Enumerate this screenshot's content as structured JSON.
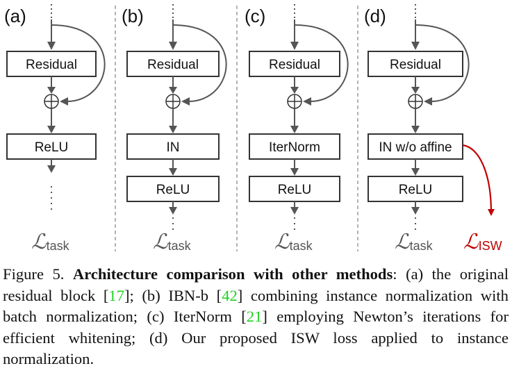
{
  "panels": [
    {
      "label": "(a)",
      "boxes": [
        "Residual",
        "ReLU"
      ],
      "loss": "task"
    },
    {
      "label": "(b)",
      "boxes": [
        "Residual",
        "IN",
        "ReLU"
      ],
      "loss": "task"
    },
    {
      "label": "(c)",
      "boxes": [
        "Residual",
        "IterNorm",
        "ReLU"
      ],
      "loss": "task"
    },
    {
      "label": "(d)",
      "boxes": [
        "Residual",
        "IN w/o affine",
        "ReLU"
      ],
      "loss": "task",
      "extra_loss": "ISW"
    }
  ],
  "colors": {
    "isw": "#c00000",
    "ref": "#1fd11f",
    "arrow": "#555555"
  },
  "caption": {
    "prefix": "Figure 5. ",
    "bold": "Architecture comparison with other methods",
    "t1": ": (a) the original residual block [",
    "r1": "17",
    "t2": "]; (b) IBN-b [",
    "r2": "42",
    "t3": "] combining instance normalization with batch normalization; (c) IterNorm [",
    "r3": "21",
    "t4": "] employing Newton’s iterations for efficient whitening; (d) Our proposed ISW loss applied to instance normalization."
  }
}
